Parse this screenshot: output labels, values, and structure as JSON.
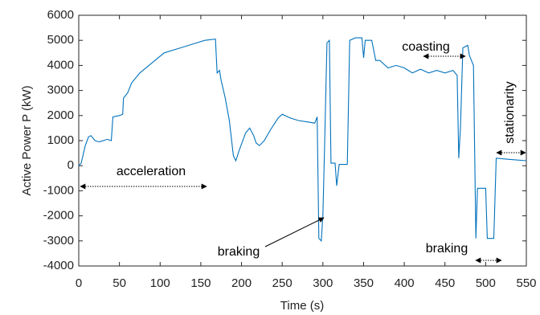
{
  "chart_data": {
    "type": "line",
    "xlabel": "Time (s)",
    "ylabel": "Active Power  P (kW)",
    "color": "#0072bd",
    "x": [
      0,
      3,
      8,
      12,
      15,
      20,
      25,
      35,
      40,
      42,
      50,
      54,
      55,
      60,
      65,
      75,
      90,
      105,
      120,
      140,
      155,
      168,
      170,
      173,
      175,
      180,
      185,
      190,
      193,
      197,
      205,
      210,
      215,
      218,
      222,
      228,
      235,
      245,
      250,
      260,
      270,
      280,
      290,
      293,
      295,
      298,
      300,
      302,
      305,
      308,
      310,
      315,
      317,
      320,
      330,
      333,
      340,
      348,
      350,
      352,
      360,
      365,
      370,
      380,
      390,
      400,
      410,
      420,
      430,
      440,
      450,
      460,
      465,
      467,
      469,
      472,
      478,
      480,
      485,
      488,
      490,
      500,
      502,
      510,
      513,
      530,
      550
    ],
    "values": [
      0,
      100,
      800,
      1150,
      1200,
      1000,
      950,
      1050,
      1000,
      1950,
      2000,
      2050,
      2700,
      2900,
      3300,
      3700,
      4100,
      4500,
      4650,
      4850,
      5000,
      5050,
      3700,
      3800,
      3400,
      2700,
      1800,
      400,
      200,
      600,
      1300,
      1500,
      1200,
      900,
      800,
      1000,
      1400,
      1900,
      2050,
      1900,
      1800,
      1750,
      1700,
      1950,
      -2900,
      -3000,
      -2000,
      600,
      4900,
      5000,
      100,
      100,
      -800,
      50,
      50,
      5000,
      5100,
      5100,
      4300,
      5000,
      5000,
      4200,
      4200,
      3900,
      4000,
      3900,
      3700,
      3850,
      3700,
      3800,
      3700,
      3800,
      3600,
      300,
      1500,
      4700,
      4800,
      4400,
      4000,
      -2900,
      -900,
      -900,
      -2900,
      -2900,
      300,
      250,
      200
    ],
    "xlim": [
      0,
      550
    ],
    "xticks": [
      0,
      50,
      100,
      150,
      200,
      250,
      300,
      350,
      400,
      450,
      500,
      550
    ],
    "ylim": [
      -4000,
      6000
    ],
    "yticks": [
      -4000,
      -3000,
      -2000,
      -1000,
      0,
      1000,
      2000,
      3000,
      4000,
      5000,
      6000
    ],
    "annotations": [
      "acceleration",
      "braking",
      "coasting",
      "braking",
      "stationarity"
    ]
  }
}
